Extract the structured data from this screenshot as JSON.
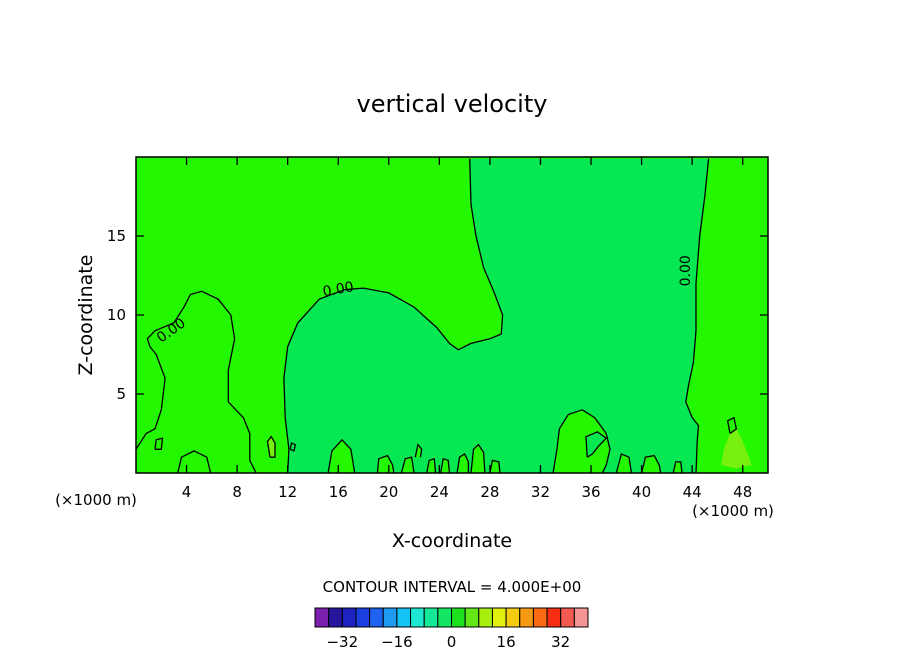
{
  "chart_data": {
    "type": "contour",
    "title": "vertical velocity",
    "xlabel": "X-coordinate",
    "ylabel": "Z-coordinate",
    "x_unit_left": "(×1000 m)",
    "x_unit_right": "(×1000 m)",
    "xlim": [
      0,
      50
    ],
    "ylim": [
      0,
      20
    ],
    "x_ticks": [
      4,
      8,
      12,
      16,
      20,
      24,
      28,
      32,
      36,
      40,
      44,
      48
    ],
    "y_ticks": [
      5,
      10,
      15
    ],
    "contour_interval_text": "CONTOUR INTERVAL = 4.000E+00",
    "contour_labels": [
      {
        "text": "0.00",
        "x": 2.8,
        "z": 9.0,
        "angle": -35
      },
      {
        "text": "0.00",
        "x": 16.0,
        "z": 11.6,
        "angle": -10
      },
      {
        "text": "0.00",
        "x": 43.5,
        "z": 12.8,
        "angle": -90
      }
    ],
    "zero_contours": [
      [
        [
          0.0,
          1.5
        ],
        [
          0.8,
          2.5
        ],
        [
          1.5,
          2.8
        ],
        [
          2.0,
          4.0
        ],
        [
          2.3,
          6.0
        ],
        [
          1.6,
          7.5
        ],
        [
          1.1,
          8.0
        ],
        [
          0.9,
          8.5
        ],
        [
          1.5,
          9.0
        ],
        [
          3.0,
          9.5
        ],
        [
          3.8,
          10.5
        ],
        [
          4.3,
          11.3
        ],
        [
          5.2,
          11.5
        ],
        [
          6.5,
          11.0
        ],
        [
          7.5,
          10.0
        ],
        [
          7.8,
          8.5
        ],
        [
          7.3,
          6.5
        ],
        [
          7.3,
          4.5
        ],
        [
          8.5,
          3.5
        ],
        [
          9.0,
          2.5
        ],
        [
          9.0,
          0.8
        ],
        [
          9.5,
          0.0
        ]
      ],
      [
        [
          12.0,
          0.0
        ],
        [
          12.1,
          1.5
        ],
        [
          11.8,
          3.5
        ],
        [
          11.7,
          6.0
        ],
        [
          12.0,
          8.0
        ],
        [
          12.8,
          9.5
        ],
        [
          14.5,
          11.0
        ],
        [
          16.5,
          11.6
        ],
        [
          18.0,
          11.7
        ],
        [
          20.0,
          11.4
        ],
        [
          22.0,
          10.5
        ],
        [
          23.8,
          9.2
        ],
        [
          24.8,
          8.2
        ],
        [
          25.5,
          7.8
        ],
        [
          26.5,
          8.2
        ],
        [
          28.0,
          8.5
        ],
        [
          28.9,
          8.8
        ],
        [
          29.0,
          10.0
        ],
        [
          28.3,
          11.5
        ],
        [
          27.5,
          13.0
        ],
        [
          26.9,
          15.0
        ],
        [
          26.5,
          17.0
        ],
        [
          26.4,
          19.9
        ]
      ],
      [
        [
          45.3,
          19.9
        ],
        [
          45.0,
          17.5
        ],
        [
          44.6,
          15.0
        ],
        [
          44.3,
          12.0
        ],
        [
          44.3,
          9.0
        ],
        [
          44.1,
          7.0
        ],
        [
          43.7,
          5.5
        ],
        [
          43.5,
          4.5
        ],
        [
          44.0,
          3.5
        ],
        [
          44.5,
          3.0
        ],
        [
          44.4,
          2.0
        ],
        [
          44.3,
          0.0
        ]
      ],
      [
        [
          1.5,
          1.5
        ],
        [
          1.6,
          2.1
        ],
        [
          2.1,
          2.2
        ],
        [
          2.0,
          1.5
        ],
        [
          1.5,
          1.5
        ]
      ],
      [
        [
          3.3,
          0.0
        ],
        [
          3.6,
          1.0
        ],
        [
          4.6,
          1.4
        ],
        [
          5.6,
          1.0
        ],
        [
          5.9,
          0.0
        ]
      ],
      [
        [
          15.2,
          0.0
        ],
        [
          15.5,
          1.4
        ],
        [
          16.3,
          2.1
        ],
        [
          17.0,
          1.5
        ],
        [
          17.3,
          0.0
        ]
      ],
      [
        [
          19.1,
          0.0
        ],
        [
          19.2,
          0.9
        ],
        [
          19.9,
          1.1
        ],
        [
          20.3,
          0.5
        ],
        [
          20.4,
          0.0
        ]
      ],
      [
        [
          21.0,
          0.0
        ],
        [
          21.3,
          0.9
        ],
        [
          21.8,
          1.0
        ],
        [
          22.0,
          0.0
        ]
      ],
      [
        [
          22.1,
          1.0
        ],
        [
          22.3,
          1.8
        ],
        [
          22.6,
          1.5
        ],
        [
          22.5,
          1.0
        ]
      ],
      [
        [
          23.0,
          0.0
        ],
        [
          23.2,
          0.8
        ],
        [
          23.6,
          0.9
        ],
        [
          23.7,
          0.0
        ]
      ],
      [
        [
          24.1,
          0.0
        ],
        [
          24.3,
          0.9
        ],
        [
          24.7,
          0.8
        ],
        [
          24.8,
          0.0
        ]
      ],
      [
        [
          25.4,
          0.0
        ],
        [
          25.6,
          1.0
        ],
        [
          26.0,
          1.2
        ],
        [
          26.3,
          0.7
        ],
        [
          26.3,
          0.0
        ]
      ],
      [
        [
          26.5,
          0.0
        ],
        [
          26.7,
          1.5
        ],
        [
          27.1,
          1.8
        ],
        [
          27.5,
          1.3
        ],
        [
          27.6,
          0.0
        ]
      ],
      [
        [
          28.0,
          0.0
        ],
        [
          28.2,
          0.8
        ],
        [
          28.7,
          0.7
        ],
        [
          28.8,
          0.0
        ]
      ],
      [
        [
          33.0,
          0.0
        ],
        [
          33.3,
          1.5
        ],
        [
          33.5,
          2.8
        ],
        [
          34.2,
          3.7
        ],
        [
          35.3,
          4.0
        ],
        [
          36.3,
          3.5
        ],
        [
          37.2,
          2.5
        ],
        [
          37.5,
          1.5
        ],
        [
          37.2,
          0.5
        ],
        [
          36.9,
          0.0
        ]
      ],
      [
        [
          35.7,
          1.0
        ],
        [
          35.6,
          2.3
        ],
        [
          36.5,
          2.6
        ],
        [
          37.2,
          2.2
        ],
        [
          36.6,
          1.7
        ],
        [
          36.1,
          1.2
        ],
        [
          35.7,
          1.0
        ]
      ],
      [
        [
          38.0,
          0.0
        ],
        [
          38.4,
          1.2
        ],
        [
          39.0,
          1.0
        ],
        [
          39.2,
          0.0
        ]
      ],
      [
        [
          40.0,
          0.0
        ],
        [
          40.3,
          1.0
        ],
        [
          41.0,
          1.1
        ],
        [
          41.4,
          0.5
        ],
        [
          41.5,
          0.0
        ]
      ],
      [
        [
          42.5,
          0.0
        ],
        [
          42.7,
          0.7
        ],
        [
          43.1,
          0.7
        ],
        [
          43.2,
          0.0
        ]
      ],
      [
        [
          10.6,
          1.0
        ],
        [
          10.4,
          2.0
        ],
        [
          10.7,
          2.3
        ],
        [
          11.0,
          1.9
        ],
        [
          11.0,
          1.0
        ],
        [
          10.6,
          1.0
        ]
      ],
      [
        [
          12.2,
          1.5
        ],
        [
          12.3,
          1.9
        ],
        [
          12.6,
          1.8
        ],
        [
          12.5,
          1.4
        ],
        [
          12.2,
          1.5
        ]
      ],
      [
        [
          47.0,
          2.5
        ],
        [
          46.8,
          3.3
        ],
        [
          47.3,
          3.5
        ],
        [
          47.5,
          2.8
        ],
        [
          47.0,
          2.5
        ]
      ]
    ],
    "light_patches": [
      [
        [
          10.6,
          1.0
        ],
        [
          10.4,
          2.0
        ],
        [
          10.7,
          2.3
        ],
        [
          11.0,
          1.9
        ],
        [
          11.0,
          1.0
        ],
        [
          10.6,
          1.0
        ]
      ],
      [
        [
          46.3,
          0.5
        ],
        [
          46.5,
          1.5
        ],
        [
          47.0,
          2.5
        ],
        [
          47.5,
          2.8
        ],
        [
          48.0,
          2.0
        ],
        [
          48.5,
          1.0
        ],
        [
          48.7,
          0.5
        ],
        [
          47.5,
          0.3
        ],
        [
          46.3,
          0.5
        ]
      ]
    ],
    "colorbar": {
      "colors": [
        "#7a1fae",
        "#27169c",
        "#1e22c0",
        "#1a3fe0",
        "#1f62ee",
        "#1e9af2",
        "#13c4f5",
        "#1ee8d2",
        "#15e897",
        "#12e662",
        "#1ee11e",
        "#64e815",
        "#a8ef10",
        "#e3ef0f",
        "#f5cc10",
        "#f59a12",
        "#f76a12",
        "#f62d10",
        "#f45a52",
        "#f49494"
      ],
      "tick_labels": [
        "−32",
        "−16",
        "0",
        "16",
        "32"
      ],
      "tick_values": [
        -32,
        -16,
        0,
        16,
        32
      ],
      "min": -40,
      "max": 40
    },
    "fill_colors": {
      "background": "#24f800",
      "near_zero_region": "#05e851",
      "light_patch": "#78f010",
      "contour_line": "#000000"
    }
  }
}
